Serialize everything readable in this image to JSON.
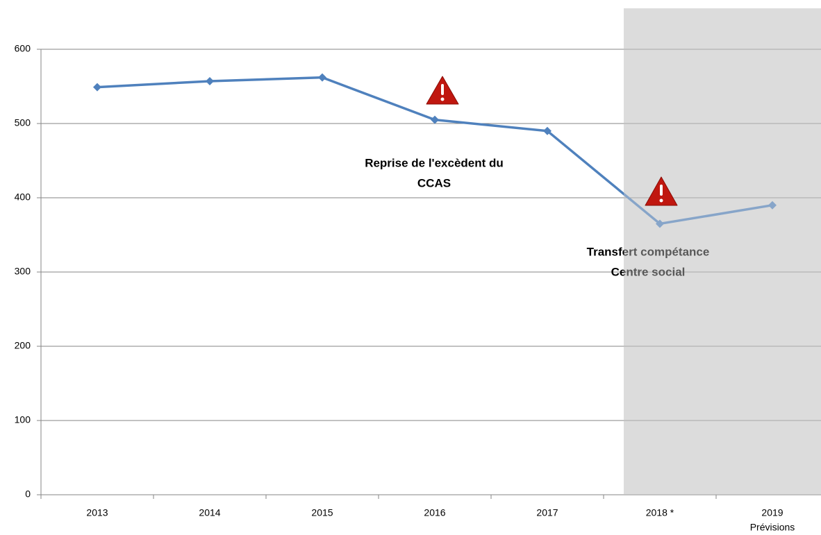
{
  "chart_data": {
    "type": "line",
    "categories": [
      "2013",
      "2014",
      "2015",
      "2016",
      "2017",
      "2018 *",
      "2019"
    ],
    "forecast_label": "Prévisions",
    "series": [
      {
        "color": "#4f81bd",
        "values": [
          549,
          557,
          562,
          505,
          490,
          365,
          390
        ]
      }
    ],
    "ylim": [
      0,
      600
    ],
    "yticks": [
      0,
      100,
      200,
      300,
      400,
      500,
      600
    ],
    "grid": true,
    "annotations": [
      {
        "lines": [
          "Reprise de l'excèdent du",
          "CCAS"
        ]
      },
      {
        "lines": [
          "Transfert compétance",
          "Centre social"
        ]
      }
    ]
  }
}
